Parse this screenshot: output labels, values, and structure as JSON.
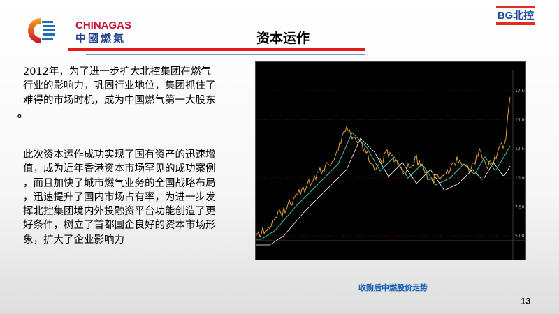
{
  "header": {
    "logo_en": "CHINAGAS",
    "logo_cn": "中國燃氣",
    "partner_logo": "BG北控",
    "title": "资本运作"
  },
  "body": {
    "paragraph1": [
      "2012年，为了进一步扩大北控集团在燃气",
      "行业的影响力，巩固行业地位，集团抓住了",
      "难得的市场时机，成为中国燃气第一大股东",
      "。"
    ],
    "paragraph2": [
      "此次资本运作成功实现了国有资产的迅速增",
      "值，成为近年香港资本市场罕见的成功案例",
      "，而且加快了城市燃气业务的全国战略布局",
      "，迅速提升了国内市场占有率，为进一步发",
      "挥北控集团境内外投融资平台功能创造了更",
      "好条件，树立了首都国企良好的资本市场形",
      "象，扩大了企业影响力"
    ]
  },
  "stock_chart": {
    "y_ticks": [
      "17.50",
      "15.00",
      "12.50",
      "10.00",
      "7.50",
      "5.00"
    ],
    "colors": {
      "background": "#000000",
      "candles": "#e0a040",
      "ma1": "#40c0a0",
      "ma2": "#ffffff"
    }
  },
  "caption": "收购后中燃股价走势",
  "page_number": "13"
}
